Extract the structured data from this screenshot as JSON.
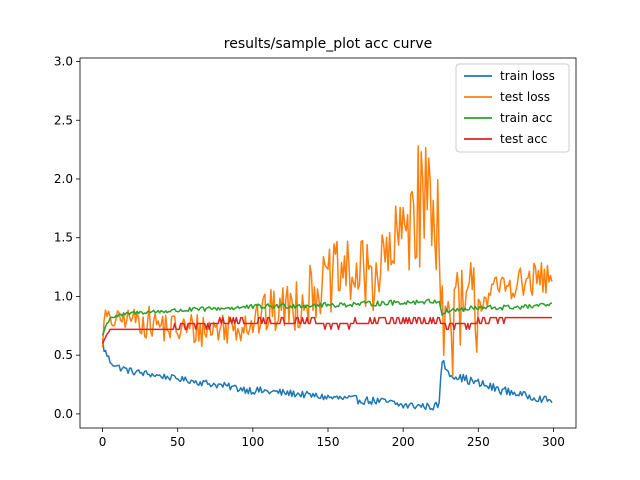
{
  "chart_data": {
    "type": "line",
    "title": "results/sample_plot acc curve",
    "xlabel": "",
    "ylabel": "",
    "xlim": [
      -15,
      315
    ],
    "ylim": [
      -0.12,
      3.03
    ],
    "x_ticks": [
      0,
      50,
      100,
      150,
      200,
      250,
      300
    ],
    "y_ticks": [
      0.0,
      0.5,
      1.0,
      1.5,
      2.0,
      2.5,
      3.0
    ],
    "x_tick_labels": [
      "0",
      "50",
      "100",
      "150",
      "200",
      "250",
      "300"
    ],
    "y_tick_labels": [
      "0.0",
      "0.5",
      "1.0",
      "1.5",
      "2.0",
      "2.5",
      "3.0"
    ],
    "grid": false,
    "legend_position": "top-right",
    "epochs": 300,
    "series": [
      {
        "name": "train loss",
        "color": "#1f77b4",
        "keypoints": [
          [
            0,
            0.63
          ],
          [
            1,
            0.55
          ],
          [
            3,
            0.5
          ],
          [
            5,
            0.45
          ],
          [
            10,
            0.4
          ],
          [
            20,
            0.36
          ],
          [
            30,
            0.34
          ],
          [
            50,
            0.3
          ],
          [
            70,
            0.26
          ],
          [
            100,
            0.2
          ],
          [
            130,
            0.17
          ],
          [
            150,
            0.14
          ],
          [
            170,
            0.12
          ],
          [
            190,
            0.1
          ],
          [
            200,
            0.07
          ],
          [
            210,
            0.07
          ],
          [
            220,
            0.06
          ],
          [
            224,
            0.08
          ],
          [
            225,
            0.3
          ],
          [
            226,
            0.46
          ],
          [
            228,
            0.4
          ],
          [
            232,
            0.33
          ],
          [
            240,
            0.3
          ],
          [
            260,
            0.22
          ],
          [
            280,
            0.16
          ],
          [
            299,
            0.11
          ]
        ],
        "noise": [
          0.03,
          0.025,
          0.03,
          0.035,
          0.03,
          0.035,
          0.035,
          0.03,
          0.04,
          0.03
        ]
      },
      {
        "name": "test loss",
        "color": "#ff7f0e",
        "keypoints": [
          [
            0,
            0.63
          ],
          [
            2,
            0.85
          ],
          [
            5,
            0.78
          ],
          [
            10,
            0.8
          ],
          [
            20,
            0.82
          ],
          [
            30,
            0.78
          ],
          [
            50,
            0.72
          ],
          [
            70,
            0.72
          ],
          [
            90,
            0.75
          ],
          [
            110,
            0.85
          ],
          [
            130,
            0.95
          ],
          [
            140,
            1.05
          ],
          [
            150,
            1.12
          ],
          [
            160,
            1.2
          ],
          [
            170,
            1.18
          ],
          [
            180,
            1.2
          ],
          [
            190,
            1.3
          ],
          [
            200,
            1.55
          ],
          [
            205,
            1.8
          ],
          [
            210,
            1.75
          ],
          [
            215,
            1.9
          ],
          [
            220,
            1.7
          ],
          [
            224,
            1.75
          ],
          [
            226,
            0.9
          ],
          [
            228,
            0.7
          ],
          [
            232,
            0.75
          ],
          [
            240,
            0.85
          ],
          [
            250,
            0.95
          ],
          [
            260,
            1.05
          ],
          [
            270,
            1.1
          ],
          [
            280,
            1.1
          ],
          [
            290,
            1.15
          ],
          [
            299,
            1.12
          ]
        ],
        "noise": [
          0.08,
          0.14,
          0.15,
          0.15,
          0.2,
          0.25,
          0.3,
          0.35,
          0.55,
          0.45,
          0.12,
          0.15
        ]
      },
      {
        "name": "train acc",
        "color": "#2ca02c",
        "keypoints": [
          [
            0,
            0.67
          ],
          [
            2,
            0.74
          ],
          [
            5,
            0.82
          ],
          [
            20,
            0.86
          ],
          [
            50,
            0.88
          ],
          [
            80,
            0.9
          ],
          [
            120,
            0.92
          ],
          [
            160,
            0.93
          ],
          [
            200,
            0.95
          ],
          [
            224,
            0.96
          ],
          [
            226,
            0.85
          ],
          [
            230,
            0.88
          ],
          [
            250,
            0.9
          ],
          [
            280,
            0.91
          ],
          [
            299,
            0.93
          ]
        ],
        "noise": [
          0.015,
          0.02,
          0.02,
          0.022,
          0.022,
          0.022,
          0.022,
          0.02,
          0.025,
          0.02
        ]
      },
      {
        "name": "test acc",
        "color": "#d62728",
        "keypoints": [
          [
            0,
            0.6
          ],
          [
            3,
            0.68
          ],
          [
            6,
            0.72
          ],
          [
            20,
            0.72
          ],
          [
            40,
            0.72
          ],
          [
            60,
            0.75
          ],
          [
            80,
            0.78
          ],
          [
            120,
            0.79
          ],
          [
            150,
            0.76
          ],
          [
            170,
            0.77
          ],
          [
            190,
            0.8
          ],
          [
            210,
            0.79
          ],
          [
            224,
            0.79
          ],
          [
            226,
            0.75
          ],
          [
            240,
            0.75
          ],
          [
            250,
            0.78
          ],
          [
            260,
            0.82
          ],
          [
            299,
            0.82
          ]
        ],
        "levels": [
          0.72,
          0.77,
          0.82
        ],
        "noise": [
          0.0,
          0.02,
          0.03,
          0.035,
          0.035,
          0.03,
          0.035,
          0.03,
          0.03,
          0.01
        ]
      }
    ]
  }
}
